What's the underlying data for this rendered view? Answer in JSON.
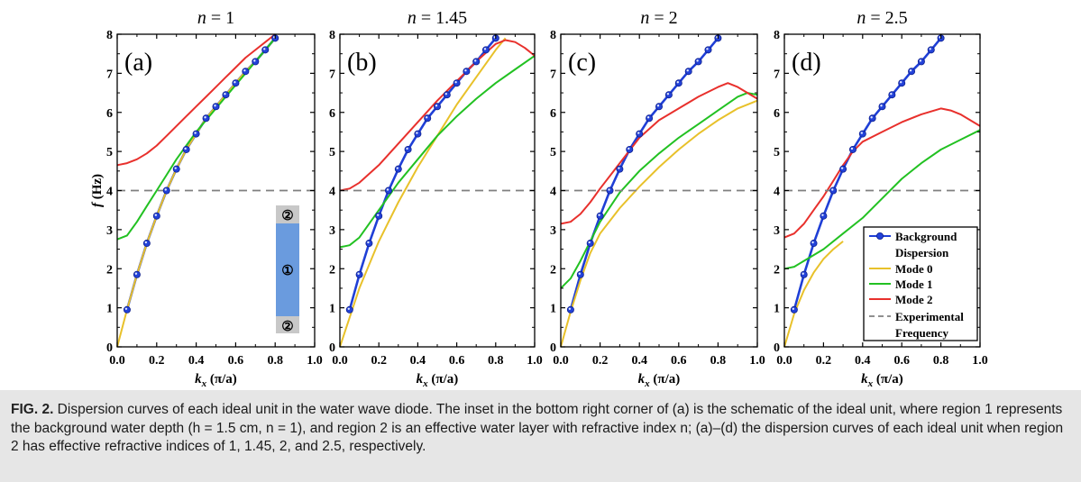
{
  "chart_data": [
    {
      "type": "line",
      "title": "n = 1",
      "panel_label": "(a)",
      "xlabel": "k_x (π/a)",
      "ylabel": "f (Hz)",
      "xlim": [
        0,
        1.0
      ],
      "ylim": [
        0,
        8
      ],
      "xticks": [
        "0.0",
        "0.2",
        "0.4",
        "0.6",
        "0.8",
        "1.0"
      ],
      "yticks": [
        "0",
        "1",
        "2",
        "3",
        "4",
        "5",
        "6",
        "7",
        "8"
      ],
      "grid": false,
      "series": [
        {
          "name": "Background Dispersion",
          "color": "#1f3fd6",
          "x": [
            0.05,
            0.1,
            0.15,
            0.2,
            0.25,
            0.3,
            0.35,
            0.4,
            0.45,
            0.5,
            0.55,
            0.6,
            0.65,
            0.7,
            0.75,
            0.8
          ],
          "y": [
            0.95,
            1.85,
            2.65,
            3.35,
            4.0,
            4.55,
            5.05,
            5.45,
            5.85,
            6.15,
            6.45,
            6.75,
            7.05,
            7.3,
            7.6,
            7.9
          ]
        },
        {
          "name": "Mode 0",
          "color": "#e8c12a",
          "x": [
            0.0,
            0.05,
            0.1,
            0.15,
            0.2,
            0.25,
            0.3,
            0.35,
            0.4,
            0.45,
            0.5,
            0.55,
            0.6,
            0.65,
            0.7,
            0.75,
            0.8
          ],
          "y": [
            0.0,
            0.95,
            1.85,
            2.65,
            3.35,
            4.0,
            4.55,
            5.05,
            5.45,
            5.85,
            6.15,
            6.45,
            6.75,
            7.05,
            7.3,
            7.6,
            7.9
          ]
        },
        {
          "name": "Mode 1",
          "color": "#22c122",
          "x": [
            0.0,
            0.05,
            0.1,
            0.15,
            0.2,
            0.25,
            0.3,
            0.35,
            0.4,
            0.45,
            0.5,
            0.55,
            0.6,
            0.65,
            0.7,
            0.75,
            0.8
          ],
          "y": [
            2.75,
            2.85,
            3.2,
            3.6,
            4.0,
            4.4,
            4.8,
            5.15,
            5.5,
            5.8,
            6.1,
            6.4,
            6.7,
            7.0,
            7.3,
            7.6,
            7.9
          ]
        },
        {
          "name": "Mode 2",
          "color": "#e8302c",
          "x": [
            0.0,
            0.05,
            0.1,
            0.15,
            0.2,
            0.25,
            0.3,
            0.35,
            0.4,
            0.45,
            0.5,
            0.55,
            0.6,
            0.65,
            0.7,
            0.75,
            0.8
          ],
          "y": [
            4.65,
            4.7,
            4.8,
            4.95,
            5.15,
            5.4,
            5.65,
            5.9,
            6.15,
            6.4,
            6.65,
            6.9,
            7.15,
            7.4,
            7.6,
            7.8,
            8.0
          ]
        },
        {
          "name": "Experimental Frequency",
          "color": "#808080",
          "dashed": true,
          "x": [
            0.0,
            1.0
          ],
          "y": [
            4.0,
            4.0
          ]
        }
      ],
      "inset": {
        "labels": [
          "②",
          "①",
          "②"
        ]
      }
    },
    {
      "type": "line",
      "title": "n = 1.45",
      "panel_label": "(b)",
      "xlabel": "k_x (π/a)",
      "xlim": [
        0,
        1.0
      ],
      "ylim": [
        0,
        8
      ],
      "xticks": [
        "0.0",
        "0.2",
        "0.4",
        "0.6",
        "0.8",
        "1.0"
      ],
      "yticks": [
        "0",
        "1",
        "2",
        "3",
        "4",
        "5",
        "6",
        "7",
        "8"
      ],
      "series": [
        {
          "name": "Background Dispersion",
          "color": "#1f3fd6",
          "x": [
            0.05,
            0.1,
            0.15,
            0.2,
            0.25,
            0.3,
            0.35,
            0.4,
            0.45,
            0.5,
            0.55,
            0.6,
            0.65,
            0.7,
            0.75,
            0.8
          ],
          "y": [
            0.95,
            1.85,
            2.65,
            3.35,
            4.0,
            4.55,
            5.05,
            5.45,
            5.85,
            6.15,
            6.45,
            6.75,
            7.05,
            7.3,
            7.6,
            7.9
          ]
        },
        {
          "name": "Mode 0",
          "color": "#e8c12a",
          "x": [
            0.0,
            0.1,
            0.2,
            0.3,
            0.4,
            0.5,
            0.6,
            0.7,
            0.8,
            0.85
          ],
          "y": [
            0.0,
            1.5,
            2.7,
            3.7,
            4.6,
            5.4,
            6.2,
            6.9,
            7.6,
            7.9
          ]
        },
        {
          "name": "Mode 1",
          "color": "#22c122",
          "x": [
            0.0,
            0.05,
            0.1,
            0.2,
            0.3,
            0.4,
            0.5,
            0.6,
            0.7,
            0.8,
            0.9,
            1.0
          ],
          "y": [
            2.55,
            2.6,
            2.8,
            3.5,
            4.2,
            4.8,
            5.4,
            5.9,
            6.35,
            6.75,
            7.1,
            7.45
          ]
        },
        {
          "name": "Mode 2",
          "color": "#e8302c",
          "x": [
            0.0,
            0.05,
            0.1,
            0.2,
            0.3,
            0.4,
            0.5,
            0.6,
            0.7,
            0.8,
            0.85,
            0.9,
            0.95,
            1.0
          ],
          "y": [
            4.0,
            4.05,
            4.2,
            4.65,
            5.2,
            5.75,
            6.3,
            6.8,
            7.3,
            7.75,
            7.85,
            7.8,
            7.65,
            7.45
          ]
        },
        {
          "name": "Experimental Frequency",
          "color": "#808080",
          "dashed": true,
          "x": [
            0.0,
            1.0
          ],
          "y": [
            4.0,
            4.0
          ]
        }
      ]
    },
    {
      "type": "line",
      "title": "n = 2",
      "panel_label": "(c)",
      "xlabel": "k_x (π/a)",
      "xlim": [
        0,
        1.0
      ],
      "ylim": [
        0,
        8
      ],
      "xticks": [
        "0.0",
        "0.2",
        "0.4",
        "0.6",
        "0.8",
        "1.0"
      ],
      "yticks": [
        "0",
        "1",
        "2",
        "3",
        "4",
        "5",
        "6",
        "7",
        "8"
      ],
      "series": [
        {
          "name": "Background Dispersion",
          "color": "#1f3fd6",
          "x": [
            0.05,
            0.1,
            0.15,
            0.2,
            0.25,
            0.3,
            0.35,
            0.4,
            0.45,
            0.5,
            0.55,
            0.6,
            0.65,
            0.7,
            0.75,
            0.8
          ],
          "y": [
            0.95,
            1.85,
            2.65,
            3.35,
            4.0,
            4.55,
            5.05,
            5.45,
            5.85,
            6.15,
            6.45,
            6.75,
            7.05,
            7.3,
            7.6,
            7.9
          ]
        },
        {
          "name": "Mode 0",
          "color": "#e8c12a",
          "x": [
            0.0,
            0.05,
            0.1,
            0.15,
            0.2,
            0.3,
            0.4,
            0.5,
            0.6,
            0.7,
            0.8,
            0.9,
            1.0
          ],
          "y": [
            0.0,
            0.9,
            1.7,
            2.4,
            2.9,
            3.55,
            4.1,
            4.6,
            5.05,
            5.45,
            5.8,
            6.1,
            6.3
          ]
        },
        {
          "name": "Mode 1",
          "color": "#22c122",
          "x": [
            0.0,
            0.05,
            0.1,
            0.15,
            0.2,
            0.3,
            0.4,
            0.5,
            0.6,
            0.7,
            0.8,
            0.9,
            0.95,
            1.0
          ],
          "y": [
            1.5,
            1.75,
            2.2,
            2.7,
            3.2,
            3.95,
            4.5,
            4.95,
            5.35,
            5.7,
            6.05,
            6.4,
            6.5,
            6.45
          ]
        },
        {
          "name": "Mode 2",
          "color": "#e8302c",
          "x": [
            0.0,
            0.05,
            0.1,
            0.15,
            0.2,
            0.3,
            0.4,
            0.5,
            0.6,
            0.7,
            0.8,
            0.85,
            0.9,
            0.95,
            1.0
          ],
          "y": [
            3.15,
            3.2,
            3.4,
            3.7,
            4.05,
            4.7,
            5.35,
            5.8,
            6.1,
            6.4,
            6.65,
            6.75,
            6.65,
            6.5,
            6.35
          ]
        },
        {
          "name": "Experimental Frequency",
          "color": "#808080",
          "dashed": true,
          "x": [
            0.0,
            1.0
          ],
          "y": [
            4.0,
            4.0
          ]
        }
      ]
    },
    {
      "type": "line",
      "title": "n = 2.5",
      "panel_label": "(d)",
      "xlabel": "k_x (π/a)",
      "xlim": [
        0,
        1.0
      ],
      "ylim": [
        0,
        8
      ],
      "xticks": [
        "0.0",
        "0.2",
        "0.4",
        "0.6",
        "0.8",
        "1.0"
      ],
      "yticks": [
        "0",
        "1",
        "2",
        "3",
        "4",
        "5",
        "6",
        "7",
        "8"
      ],
      "series": [
        {
          "name": "Background Dispersion",
          "color": "#1f3fd6",
          "x": [
            0.05,
            0.1,
            0.15,
            0.2,
            0.25,
            0.3,
            0.35,
            0.4,
            0.45,
            0.5,
            0.55,
            0.6,
            0.65,
            0.7,
            0.75,
            0.8
          ],
          "y": [
            0.95,
            1.85,
            2.65,
            3.35,
            4.0,
            4.55,
            5.05,
            5.45,
            5.85,
            6.15,
            6.45,
            6.75,
            7.05,
            7.3,
            7.6,
            7.9
          ]
        },
        {
          "name": "Mode 0",
          "color": "#e8c12a",
          "x": [
            0.0,
            0.05,
            0.1,
            0.15,
            0.2,
            0.25,
            0.3
          ],
          "y": [
            0.0,
            0.85,
            1.45,
            1.9,
            2.25,
            2.5,
            2.7
          ]
        },
        {
          "name": "Mode 1",
          "color": "#22c122",
          "x": [
            0.0,
            0.05,
            0.1,
            0.2,
            0.3,
            0.4,
            0.5,
            0.6,
            0.7,
            0.8,
            0.9,
            1.0
          ],
          "y": [
            2.0,
            2.05,
            2.2,
            2.5,
            2.9,
            3.3,
            3.8,
            4.3,
            4.7,
            5.05,
            5.3,
            5.55
          ]
        },
        {
          "name": "Mode 2",
          "color": "#e8302c",
          "x": [
            0.0,
            0.05,
            0.1,
            0.15,
            0.2,
            0.25,
            0.3,
            0.35,
            0.4,
            0.5,
            0.6,
            0.7,
            0.8,
            0.85,
            0.9,
            1.0
          ],
          "y": [
            2.8,
            2.9,
            3.15,
            3.5,
            3.85,
            4.25,
            4.65,
            5.0,
            5.25,
            5.5,
            5.75,
            5.95,
            6.1,
            6.05,
            5.95,
            5.65
          ]
        },
        {
          "name": "Experimental Frequency",
          "color": "#808080",
          "dashed": true,
          "x": [
            0.0,
            1.0
          ],
          "y": [
            4.0,
            4.0
          ]
        }
      ],
      "legend": {
        "placement": "bottom-right",
        "entries": [
          {
            "label_line1": "Background",
            "label_line2": "Dispersion",
            "color": "#1f3fd6",
            "style": "line-marker"
          },
          {
            "label_line1": "Mode 0",
            "color": "#e8c12a",
            "style": "line"
          },
          {
            "label_line1": "Mode 1",
            "color": "#22c122",
            "style": "line"
          },
          {
            "label_line1": "Mode 2",
            "color": "#e8302c",
            "style": "line"
          },
          {
            "label_line1": "Experimental",
            "label_line2": "Frequency",
            "color": "#808080",
            "style": "dashed"
          }
        ]
      }
    }
  ],
  "caption": {
    "label": "FIG. 2.",
    "text": " Dispersion curves of each ideal unit in the water wave diode. The inset in the bottom right corner of (a) is the schematic of the ideal unit, where region 1 represents the background water depth (h = 1.5 cm, n = 1), and region 2 is an effective water layer with refractive index n; (a)–(d) the dispersion curves of each ideal unit when region 2 has effective refractive indices of 1, 1.45, 2, and 2.5, respectively."
  }
}
